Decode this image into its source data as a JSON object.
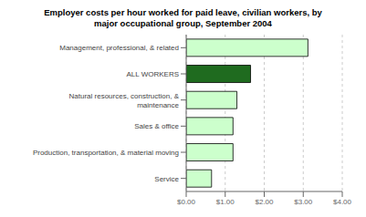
{
  "chart_data": {
    "type": "bar",
    "orientation": "horizontal",
    "title": "Employer costs per hour worked for paid leave, civilian workers, by\nmajor occupational group, September 2004",
    "categories": [
      "Service",
      "Production, transportation, & material moving",
      "Sales & office",
      "Natural resources, construction, &\nmaintenance",
      "ALL WORKERS",
      "Management, professional, & related"
    ],
    "values": [
      0.65,
      1.2,
      1.2,
      1.3,
      1.65,
      3.12
    ],
    "colors": [
      "#ccffcc",
      "#ccffcc",
      "#ccffcc",
      "#ccffcc",
      "#1f6b1f",
      "#ccffcc"
    ],
    "xlim": [
      0,
      4.0
    ],
    "xticks": [
      {
        "value": 0.0,
        "label": "$0.00"
      },
      {
        "value": 1.0,
        "label": "$1.00"
      },
      {
        "value": 2.0,
        "label": "$2.00"
      },
      {
        "value": 3.0,
        "label": "$3.00"
      },
      {
        "value": 4.0,
        "label": "$4.00"
      }
    ],
    "grid": true
  }
}
